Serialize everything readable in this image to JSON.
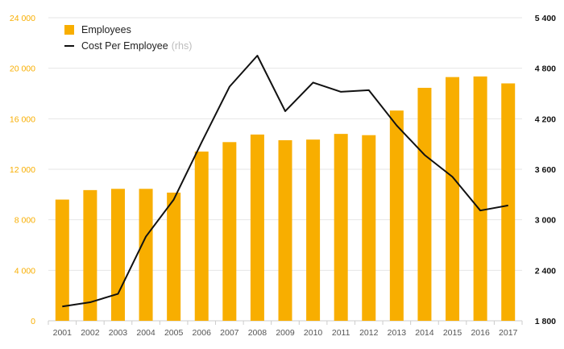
{
  "colors": {
    "bar": "#F8AE00",
    "line": "#111111",
    "left_axis_text": "#F8AE00",
    "right_axis_text": "#111111",
    "grid": "#e6e6e6",
    "x_axis_text": "#555555"
  },
  "legend": {
    "bar_label": "Employees",
    "line_label": "Cost Per Employee",
    "line_suffix": "(rhs)"
  },
  "chart_data": {
    "type": "bar",
    "categories": [
      "2001",
      "2002",
      "2003",
      "2004",
      "2005",
      "2006",
      "2007",
      "2008",
      "2009",
      "2010",
      "2011",
      "2012",
      "2013",
      "2014",
      "2015",
      "2016",
      "2017"
    ],
    "series": [
      {
        "name": "Employees",
        "type": "bar",
        "axis": "left",
        "values": [
          9600,
          10350,
          10450,
          10450,
          10150,
          13400,
          14150,
          14750,
          14300,
          14350,
          14800,
          14700,
          16650,
          18450,
          19300,
          19350,
          18800
        ]
      },
      {
        "name": "Cost Per Employee",
        "type": "line",
        "axis": "right",
        "values": [
          1970,
          2020,
          2120,
          2800,
          3240,
          3920,
          4580,
          4950,
          4290,
          4630,
          4520,
          4540,
          4120,
          3770,
          3510,
          3110,
          3170
        ]
      }
    ],
    "yleft": {
      "ylim": [
        0,
        24000
      ],
      "ticks": [
        0,
        4000,
        8000,
        12000,
        16000,
        20000,
        24000
      ],
      "tick_labels": [
        "0",
        "4 000",
        "8 000",
        "12 000",
        "16 000",
        "20 000",
        "24 000"
      ]
    },
    "yright": {
      "ylim": [
        1800,
        5400
      ],
      "ticks": [
        1800,
        2400,
        3000,
        3600,
        4200,
        4800,
        5400
      ],
      "tick_labels": [
        "1 800",
        "2 400",
        "3 000",
        "3 600",
        "4 200",
        "4 800",
        "5 400"
      ]
    },
    "grid": true,
    "legend_position": "top-left"
  }
}
